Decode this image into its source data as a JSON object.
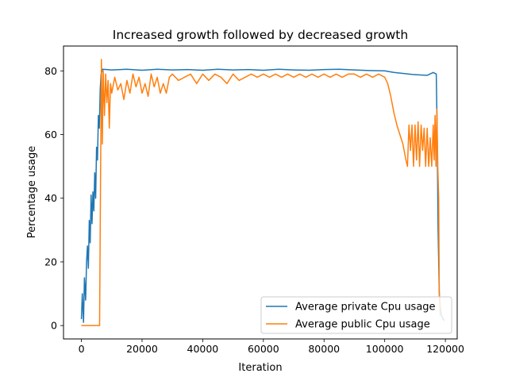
{
  "chart_data": {
    "type": "line",
    "title": "Increased growth followed by decreased growth",
    "xlabel": "Iteration",
    "ylabel": "Percentage usage",
    "xlim": [
      -5900,
      123900
    ],
    "ylim": [
      -4.2,
      87.8
    ],
    "xticks": [
      0,
      20000,
      40000,
      60000,
      80000,
      100000,
      120000
    ],
    "yticks": [
      0,
      20,
      40,
      60,
      80
    ],
    "xtick_labels": [
      "0",
      "20000",
      "40000",
      "60000",
      "80000",
      "100000",
      "120000"
    ],
    "ytick_labels": [
      "0",
      "20",
      "40",
      "60",
      "80"
    ],
    "grid": false,
    "legend_position": "bottom-right",
    "series": [
      {
        "name": "Average private Cpu usage",
        "color": "#1f77b4",
        "x": [
          0,
          300,
          700,
          1000,
          1400,
          1700,
          2000,
          2300,
          2600,
          2900,
          3200,
          3500,
          3800,
          4100,
          4400,
          4700,
          5000,
          5300,
          5600,
          5900,
          6200,
          6500,
          7000,
          10000,
          15000,
          20000,
          25000,
          30000,
          35000,
          40000,
          45000,
          50000,
          55000,
          60000,
          65000,
          70000,
          75000,
          80000,
          85000,
          90000,
          95000,
          100000,
          103000,
          106000,
          109000,
          112000,
          114000,
          116000,
          117000,
          117300,
          117600,
          118000,
          118400,
          118800,
          119300,
          119700
        ],
        "y": [
          2,
          10,
          1,
          15,
          8,
          20,
          25,
          18,
          33,
          26,
          41,
          32,
          42,
          36,
          48,
          40,
          56,
          52,
          66,
          62,
          74,
          79,
          80.5,
          80.3,
          80.5,
          80.2,
          80.5,
          80.3,
          80.4,
          80.2,
          80.5,
          80.3,
          80.4,
          80.2,
          80.5,
          80.3,
          80.2,
          80.4,
          80.5,
          80.3,
          80.1,
          80,
          79.5,
          79.2,
          78.9,
          78.7,
          78.6,
          79.5,
          79,
          60,
          30,
          10,
          5,
          3,
          2,
          1.5
        ]
      },
      {
        "name": "Average public Cpu usage",
        "color": "#ff7f0e",
        "x": [
          0,
          1000,
          2000,
          3000,
          4000,
          5000,
          6000,
          6300,
          6600,
          6900,
          7200,
          7600,
          8000,
          8400,
          8800,
          9200,
          9600,
          10000,
          11000,
          12000,
          13000,
          14000,
          15000,
          16000,
          17000,
          18000,
          19000,
          20000,
          21000,
          22000,
          23000,
          24000,
          25000,
          26000,
          27000,
          28000,
          29000,
          30000,
          32000,
          34000,
          36000,
          38000,
          40000,
          42000,
          44000,
          46000,
          48000,
          50000,
          52000,
          54000,
          56000,
          58000,
          60000,
          62000,
          64000,
          66000,
          68000,
          70000,
          72000,
          74000,
          76000,
          78000,
          80000,
          82000,
          84000,
          86000,
          88000,
          90000,
          92000,
          94000,
          96000,
          98000,
          100000,
          101000,
          102000,
          103000,
          104000,
          105000,
          106000,
          107000,
          107500,
          108000,
          108500,
          109000,
          109500,
          110000,
          110500,
          111000,
          111500,
          112000,
          112500,
          113000,
          113500,
          114000,
          114500,
          115000,
          115500,
          116000,
          116300,
          116600,
          116900,
          117200,
          117500,
          117800,
          118000,
          118300
        ],
        "y": [
          0,
          0,
          0,
          0,
          0,
          0,
          0,
          44,
          83.6,
          57,
          80,
          66,
          79,
          70,
          77,
          62,
          76,
          73,
          78,
          74,
          76,
          71,
          77,
          73,
          79,
          75,
          78,
          73,
          76,
          72,
          79,
          75,
          78,
          73,
          76,
          73,
          78,
          79,
          77,
          78,
          79,
          76,
          79,
          77,
          79,
          78,
          76,
          79,
          77,
          78,
          79,
          78,
          79,
          78,
          79,
          78,
          79,
          78,
          79,
          78,
          79,
          78,
          79,
          78,
          79,
          78,
          79,
          79,
          78,
          79,
          78,
          79,
          78,
          76,
          72,
          67,
          63,
          60,
          57,
          52,
          50,
          63,
          55,
          63,
          50,
          63,
          52,
          64,
          50,
          63,
          55,
          62,
          50,
          62,
          50,
          59,
          50,
          63,
          52,
          66,
          50,
          68,
          50,
          40,
          10,
          3
        ]
      }
    ]
  }
}
